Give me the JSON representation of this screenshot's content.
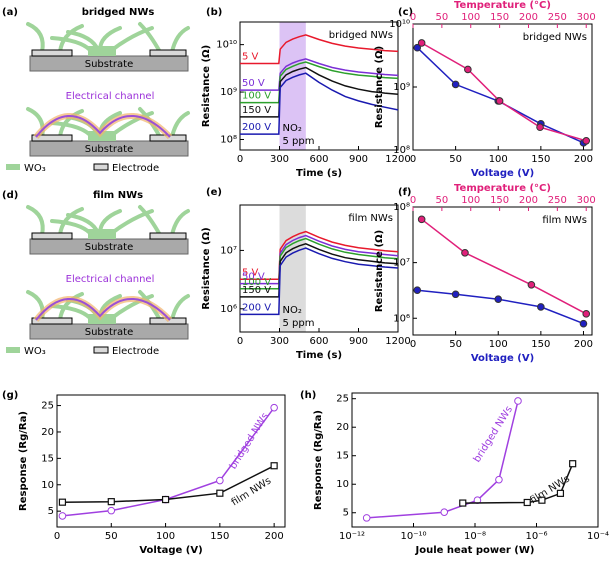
{
  "chart_data": [
    {
      "type": "diagram",
      "label": "(a)",
      "title": "bridged NWs",
      "substrate_labels": [
        "Substrate",
        "Substrate"
      ],
      "channel_label": "Electrical channel",
      "legend": [
        "WO₃",
        "Electrode"
      ]
    },
    {
      "type": "line",
      "label": "(b)",
      "annotation": "bridged NWs",
      "xlabel": "Time (s)",
      "ylabel": "Resistance (Ω)",
      "shade": [
        300,
        500
      ],
      "shade_color": "#dcc3f5",
      "shade_labels": [
        "NO₂",
        "5 ppm"
      ],
      "xlim": [
        0,
        1200
      ],
      "xticks": [
        0,
        300,
        600,
        900,
        1200
      ],
      "ylog": true,
      "ylim": [
        60000000.0,
        30000000000.0
      ],
      "yticks": [
        {
          "value": 100000000.0,
          "label": "10⁸"
        },
        {
          "value": 1000000000.0,
          "label": "10⁹"
        },
        {
          "value": 10000000000.0,
          "label": "10¹⁰"
        }
      ],
      "x": [
        0,
        100,
        200,
        295,
        305,
        350,
        400,
        450,
        500,
        600,
        700,
        800,
        900,
        1000,
        1100,
        1200
      ],
      "series": [
        {
          "name": "5 V",
          "color": "#e8192c",
          "values": [
            4000000000.0,
            4000000000.0,
            4000000000.0,
            4000000000.0,
            8000000000.0,
            11200000000.0,
            13100000000.0,
            14700000000.0,
            16000000000.0,
            12800000000.0,
            10600000000.0,
            9300000000.0,
            8500000000.0,
            8000000000.0,
            7500000000.0,
            7200000000.0
          ]
        },
        {
          "name": "50 V",
          "color": "#7b2fd6",
          "values": [
            1100000000.0,
            1100000000.0,
            1100000000.0,
            1100000000.0,
            2500000000.0,
            3500000000.0,
            4100000000.0,
            4600000000.0,
            5000000000.0,
            4000000000.0,
            3300000000.0,
            2900000000.0,
            2650000000.0,
            2500000000.0,
            2350000000.0,
            2250000000.0
          ]
        },
        {
          "name": "100 V",
          "color": "#2ca02c",
          "values": [
            600000000.0,
            600000000.0,
            600000000.0,
            600000000.0,
            2150000000.0,
            3000000000.0,
            3500000000.0,
            3960000000.0,
            4300000000.0,
            3440000000.0,
            2840000000.0,
            2490000000.0,
            2280000000.0,
            2150000000.0,
            2020000000.0,
            1940000000.0
          ]
        },
        {
          "name": "150 V",
          "color": "#111111",
          "values": [
            300000000.0,
            300000000.0,
            300000000.0,
            300000000.0,
            1650000000.0,
            2310000000.0,
            2710000000.0,
            3040000000.0,
            3300000000.0,
            2300000000.0,
            1700000000.0,
            1350000000.0,
            1150000000.0,
            1020000000.0,
            950000000.0,
            900000000.0
          ]
        },
        {
          "name": "200 V",
          "color": "#1a1ab0",
          "values": [
            130000000.0,
            130000000.0,
            130000000.0,
            130000000.0,
            1250000000.0,
            1750000000.0,
            2050000000.0,
            2300000000.0,
            2500000000.0,
            1600000000.0,
            1100000000.0,
            800000000.0,
            650000000.0,
            550000000.0,
            480000000.0,
            420000000.0
          ]
        }
      ]
    },
    {
      "type": "line",
      "label": "(c)",
      "annotation": "bridged NWs",
      "xlabel": "Voltage (V)",
      "xlabel_color": "#2020c0",
      "x2label": "Temperature (°C)",
      "x2color": "#e0207a",
      "ylabel": "Resistance (Ω)",
      "xlim": [
        0,
        210
      ],
      "xticks": [
        0,
        50,
        100,
        150,
        200
      ],
      "x2lim": [
        0,
        310
      ],
      "x2ticks": [
        0,
        50,
        100,
        150,
        200,
        250,
        300
      ],
      "ylog": true,
      "ylim": [
        100000000.0,
        10000000000.0
      ],
      "yticks": [
        {
          "value": 100000000.0,
          "label": "10⁸"
        },
        {
          "value": 1000000000.0,
          "label": "10⁹"
        },
        {
          "value": 10000000000.0,
          "label": "10¹⁰"
        }
      ],
      "series": [
        {
          "color": "#2020c0",
          "marker": "circle",
          "x": [
            5,
            50,
            100,
            150,
            200
          ],
          "values": [
            4200000000.0,
            1100000000.0,
            600000000.0,
            260000000.0,
            130000000.0
          ]
        },
        {
          "color": "#e0207a",
          "marker": "circle",
          "axis": "x2",
          "x": [
            15,
            95,
            150,
            220,
            300
          ],
          "values": [
            5000000000.0,
            1900000000.0,
            600000000.0,
            230000000.0,
            140000000.0
          ]
        }
      ]
    },
    {
      "type": "diagram",
      "label": "(d)",
      "title": "film NWs",
      "substrate_labels": [
        "Substrate",
        "Substrate"
      ],
      "channel_label": "Electrical channel",
      "legend": [
        "WO₃",
        "Electrode"
      ]
    },
    {
      "type": "line",
      "label": "(e)",
      "annotation": "film NWs",
      "xlabel": "Time (s)",
      "ylabel": "Resistance (Ω)",
      "shade": [
        300,
        500
      ],
      "shade_color": "#dcdcdc",
      "shade_labels": [
        "NO₂",
        "5 ppm"
      ],
      "xlim": [
        0,
        1200
      ],
      "xticks": [
        0,
        300,
        600,
        900,
        1200
      ],
      "ylog": true,
      "ylim": [
        400000.0,
        60000000.0
      ],
      "yticks": [
        {
          "value": 1000000.0,
          "label": "10⁶"
        },
        {
          "value": 10000000.0,
          "label": "10⁷"
        }
      ],
      "x": [
        0,
        100,
        200,
        295,
        305,
        350,
        400,
        450,
        500,
        600,
        700,
        800,
        900,
        1000,
        1100,
        1200
      ],
      "series": [
        {
          "name": "5 V",
          "color": "#e8192c",
          "values": [
            3200000.0,
            3200000.0,
            3200000.0,
            3200000.0,
            10500000.0,
            14700000.0,
            17200000.0,
            19300000.0,
            21000000.0,
            16800000.0,
            13900000.0,
            12200000.0,
            11100000.0,
            10500000.0,
            9900000.0,
            9500000.0
          ]
        },
        {
          "name": "50 V",
          "color": "#7b2fd6",
          "values": [
            2700000.0,
            2700000.0,
            2700000.0,
            2700000.0,
            9000000.0,
            12600000.0,
            14800000.0,
            16600000.0,
            18000000.0,
            14400000.0,
            11900000.0,
            10400000.0,
            9500000.0,
            9000000.0,
            8500000.0,
            8100000.0
          ]
        },
        {
          "name": "100 V",
          "color": "#2ca02c",
          "values": [
            2200000.0,
            2200000.0,
            2200000.0,
            2200000.0,
            8000000.0,
            11200000.0,
            13100000.0,
            14700000.0,
            16000000.0,
            12800000.0,
            10600000.0,
            9300000.0,
            8500000.0,
            8000000.0,
            7500000.0,
            7200000.0
          ]
        },
        {
          "name": "150 V",
          "color": "#111111",
          "values": [
            1600000.0,
            1600000.0,
            1600000.0,
            1600000.0,
            6500000.0,
            9100000.0,
            10700000.0,
            12000000.0,
            13000000.0,
            10400000.0,
            8600000.0,
            7500000.0,
            6900000.0,
            6500000.0,
            6100000.0,
            5900000.0
          ]
        },
        {
          "name": "200 V",
          "color": "#1a1ab0",
          "values": [
            800000.0,
            800000.0,
            800000.0,
            800000.0,
            5500000.0,
            7700000.0,
            9000000.0,
            10100000.0,
            11000000.0,
            8800000.0,
            7300000.0,
            6400000.0,
            5800000.0,
            5500000.0,
            5200000.0,
            5000000.0
          ]
        }
      ]
    },
    {
      "type": "line",
      "label": "(f)",
      "annotation": "film NWs",
      "xlabel": "Voltage (V)",
      "xlabel_color": "#2020c0",
      "x2label": "Temperature (°C)",
      "x2color": "#e0207a",
      "ylabel": "Resistance (Ω)",
      "xlim": [
        0,
        210
      ],
      "xticks": [
        0,
        50,
        100,
        150,
        200
      ],
      "x2lim": [
        0,
        310
      ],
      "x2ticks": [
        0,
        50,
        100,
        150,
        200,
        250,
        300
      ],
      "ylog": true,
      "ylim": [
        500000.0,
        100000000.0
      ],
      "yticks": [
        {
          "value": 1000000.0,
          "label": "10⁶"
        },
        {
          "value": 10000000.0,
          "label": "10⁷"
        },
        {
          "value": 100000000.0,
          "label": "10⁸"
        }
      ],
      "series": [
        {
          "color": "#2020c0",
          "marker": "circle",
          "x": [
            5,
            50,
            100,
            150,
            200
          ],
          "values": [
            3200000.0,
            2700000.0,
            2200000.0,
            1600000.0,
            800000.0
          ]
        },
        {
          "color": "#e0207a",
          "marker": "circle",
          "axis": "x2",
          "x": [
            15,
            90,
            205,
            300
          ],
          "values": [
            60000000.0,
            15000000.0,
            4000000.0,
            1200000.0
          ]
        }
      ]
    },
    {
      "type": "line",
      "label": "(g)",
      "xlabel": "Voltage (V)",
      "ylabel": "Response (Rg/Ra)",
      "xlim": [
        0,
        210
      ],
      "xticks": [
        0,
        50,
        100,
        150,
        200
      ],
      "ylim": [
        2,
        27
      ],
      "yticks": [
        5,
        10,
        15,
        20,
        25
      ],
      "series": [
        {
          "name": "bridged NWs",
          "color": "#a040e0",
          "marker": "open-circle",
          "x": [
            5,
            50,
            100,
            150,
            200
          ],
          "values": [
            4.1,
            5.1,
            7.2,
            10.8,
            24.6
          ]
        },
        {
          "name": "film NWs",
          "color": "#111111",
          "marker": "square",
          "x": [
            5,
            50,
            100,
            150,
            200
          ],
          "values": [
            6.7,
            6.8,
            7.2,
            8.4,
            13.6
          ]
        }
      ]
    },
    {
      "type": "line",
      "label": "(h)",
      "xlabel": "Joule heat power (W)",
      "ylabel": "Response (Rg/Ra)",
      "xlog": true,
      "xlim": [
        1e-12,
        0.0001
      ],
      "xticks": [
        {
          "value": 1e-12,
          "label": "10⁻¹²"
        },
        {
          "value": 1e-10,
          "label": "10⁻¹⁰"
        },
        {
          "value": 1e-08,
          "label": "10⁻⁸"
        },
        {
          "value": 1e-06,
          "label": "10⁻⁶"
        },
        {
          "value": 0.0001,
          "label": "10⁻⁴"
        }
      ],
      "ylim": [
        2.5,
        26
      ],
      "yticks": [
        5,
        10,
        15,
        20,
        25
      ],
      "series": [
        {
          "name": "bridged NWs",
          "color": "#a040e0",
          "marker": "open-circle",
          "x": [
            3e-12,
            1e-09,
            1.2e-08,
            6e-08,
            2.5e-07
          ],
          "values": [
            4.1,
            5.1,
            7.2,
            10.8,
            24.6
          ]
        },
        {
          "name": "film NWs",
          "color": "#111111",
          "marker": "square",
          "x": [
            4e-09,
            5e-07,
            1.5e-06,
            6e-06,
            1.5e-05
          ],
          "values": [
            6.7,
            6.8,
            7.2,
            8.4,
            13.6
          ]
        }
      ]
    }
  ]
}
